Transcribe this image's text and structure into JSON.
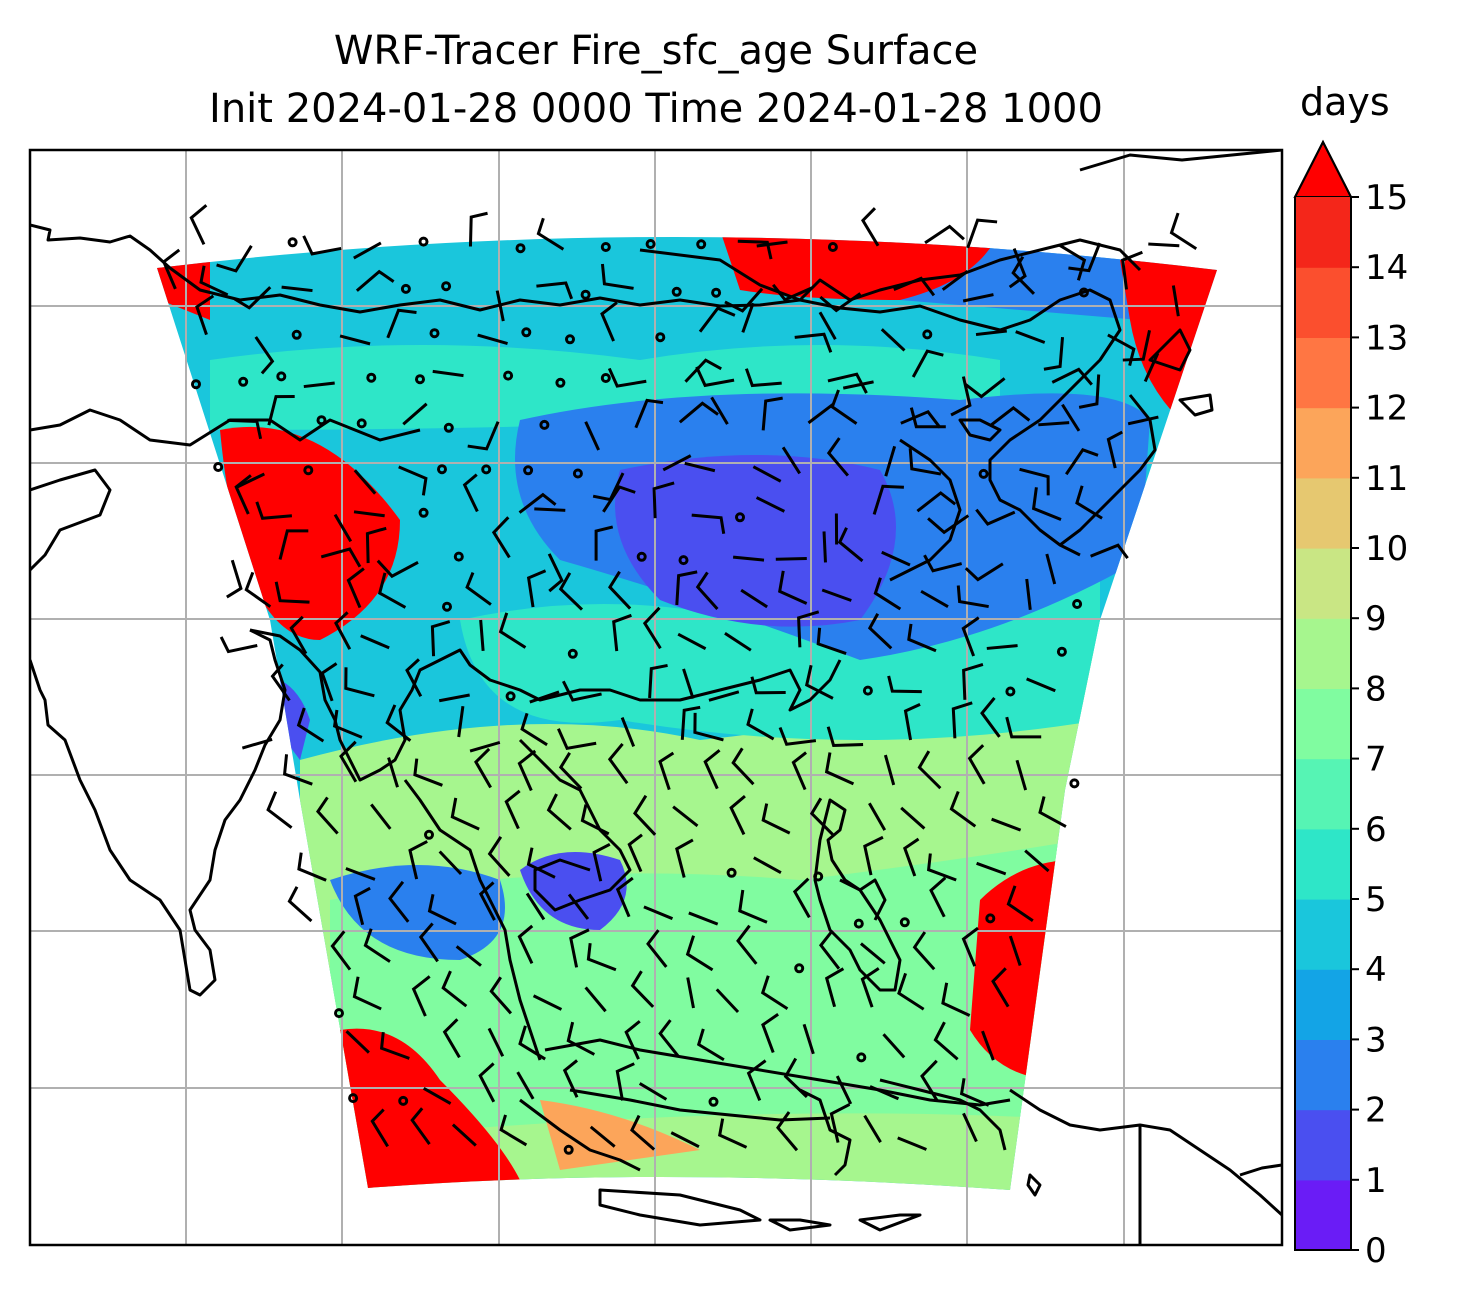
{
  "title": {
    "line1": "WRF-Tracer Fire_sfc_age Surface",
    "line2": "Init 2024-01-28 0000 Time 2024-01-28 1000"
  },
  "colorbar": {
    "unit": "days",
    "ticks": [
      "0",
      "1",
      "2",
      "3",
      "4",
      "5",
      "6",
      "7",
      "8",
      "9",
      "10",
      "11",
      "12",
      "13",
      "14",
      "15"
    ],
    "colors": [
      "#6a1cf6",
      "#4a4ff0",
      "#2a80ee",
      "#13a4e6",
      "#1ac6dc",
      "#2ee6c8",
      "#56f4b4",
      "#80fca0",
      "#a6f68e",
      "#c9e684",
      "#e6c870",
      "#fca55a",
      "#ff7643",
      "#fb4f2e",
      "#f4261a"
    ],
    "extend_color": "#ff0000"
  },
  "map": {
    "domain_palette": {
      "bg": "#1ac6dc",
      "cyan": "#2ee6c8",
      "green": "#80fca0",
      "lightgreen": "#a6f68e",
      "blue": "#2a80ee",
      "violet": "#4a4ff0",
      "red": "#ff0000",
      "orange": "#fca55a"
    },
    "coastline_color": "#000000",
    "grid_color": "#b0b0b0"
  }
}
